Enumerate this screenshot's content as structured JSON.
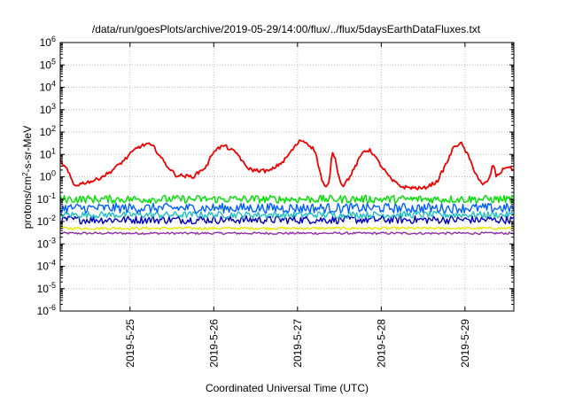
{
  "chart_data": {
    "type": "line",
    "title": "/data/run/goesPlots/archive/2019-05-29/14:00/flux/../flux/5daysEarthDataFluxes.txt",
    "xlabel": "Coordinated Universal Time (UTC)",
    "ylabel_parts": [
      "protons/cm",
      "2",
      "-s-sr-MeV"
    ],
    "y_scale": "log",
    "ylim": [
      1e-06,
      1000000.0
    ],
    "y_ticks": [
      {
        "base": "10",
        "exp": "6",
        "value": 1000000.0
      },
      {
        "base": "10",
        "exp": "5",
        "value": 100000.0
      },
      {
        "base": "10",
        "exp": "4",
        "value": 10000.0
      },
      {
        "base": "10",
        "exp": "3",
        "value": 1000.0
      },
      {
        "base": "10",
        "exp": "2",
        "value": 100.0
      },
      {
        "base": "10",
        "exp": "1",
        "value": 10.0
      },
      {
        "base": "10",
        "exp": "0",
        "value": 1.0
      },
      {
        "base": "10",
        "exp": "-1",
        "value": 0.1
      },
      {
        "base": "10",
        "exp": "-2",
        "value": 0.01
      },
      {
        "base": "10",
        "exp": "-3",
        "value": 0.001
      },
      {
        "base": "10",
        "exp": "-4",
        "value": 0.0001
      },
      {
        "base": "10",
        "exp": "-5",
        "value": 1e-05
      },
      {
        "base": "10",
        "exp": "-6",
        "value": 1e-06
      }
    ],
    "xlim": [
      "2019-05-24T04:00",
      "2019-05-29T14:00"
    ],
    "x_ticks": [
      {
        "label": "2019-5-25",
        "value": "2019-05-25T00:00"
      },
      {
        "label": "2019-5-26",
        "value": "2019-05-26T00:00"
      },
      {
        "label": "2019-5-27",
        "value": "2019-05-27T00:00"
      },
      {
        "label": "2019-5-28",
        "value": "2019-05-28T00:00"
      },
      {
        "label": "2019-5-29",
        "value": "2019-05-29T00:00"
      }
    ],
    "grid": true,
    "series": [
      {
        "color": "#f00000",
        "noise": 0.08,
        "points": [
          [
            "2019-05-24T04:00",
            5
          ],
          [
            "2019-05-24T06:00",
            2
          ],
          [
            "2019-05-24T08:00",
            0.4
          ],
          [
            "2019-05-24T10:00",
            0.5
          ],
          [
            "2019-05-24T14:00",
            0.7
          ],
          [
            "2019-05-24T18:00",
            1.5
          ],
          [
            "2019-05-24T22:00",
            5
          ],
          [
            "2019-05-25T02:00",
            20
          ],
          [
            "2019-05-25T05:00",
            30
          ],
          [
            "2019-05-25T07:00",
            20
          ],
          [
            "2019-05-25T10:00",
            4
          ],
          [
            "2019-05-25T13:00",
            1.2
          ],
          [
            "2019-05-25T18:00",
            1
          ],
          [
            "2019-05-25T22:00",
            3
          ],
          [
            "2019-05-26T00:00",
            15
          ],
          [
            "2019-05-26T03:00",
            25
          ],
          [
            "2019-05-26T07:00",
            10
          ],
          [
            "2019-05-26T09:00",
            3
          ],
          [
            "2019-05-26T11:00",
            2
          ],
          [
            "2019-05-26T16:00",
            1.8
          ],
          [
            "2019-05-26T20:00",
            5
          ],
          [
            "2019-05-26T23:00",
            20
          ],
          [
            "2019-05-27T01:00",
            45
          ],
          [
            "2019-05-27T03:00",
            30
          ],
          [
            "2019-05-27T05:00",
            15
          ],
          [
            "2019-05-27T07:00",
            0.7
          ],
          [
            "2019-05-27T08:00",
            0.3
          ],
          [
            "2019-05-27T09:00",
            0.5
          ],
          [
            "2019-05-27T10:00",
            15
          ],
          [
            "2019-05-27T11:00",
            5
          ],
          [
            "2019-05-27T12:00",
            0.8
          ],
          [
            "2019-05-27T13:00",
            0.4
          ],
          [
            "2019-05-27T15:00",
            1
          ],
          [
            "2019-05-27T19:00",
            15
          ],
          [
            "2019-05-27T21:00",
            15
          ],
          [
            "2019-05-28T00:00",
            3
          ],
          [
            "2019-05-28T03:00",
            0.7
          ],
          [
            "2019-05-28T06:00",
            0.35
          ],
          [
            "2019-05-28T12:00",
            0.3
          ],
          [
            "2019-05-28T16:00",
            0.6
          ],
          [
            "2019-05-28T19:00",
            5
          ],
          [
            "2019-05-28T21:00",
            25
          ],
          [
            "2019-05-28T23:00",
            30
          ],
          [
            "2019-05-29T01:00",
            8
          ],
          [
            "2019-05-29T03:00",
            1.5
          ],
          [
            "2019-05-29T05:00",
            0.4
          ],
          [
            "2019-05-29T07:00",
            0.8
          ],
          [
            "2019-05-29T08:00",
            4
          ],
          [
            "2019-05-29T09:00",
            1
          ],
          [
            "2019-05-29T10:00",
            1.5
          ],
          [
            "2019-05-29T12:00",
            3
          ],
          [
            "2019-05-29T14:00",
            2
          ]
        ]
      },
      {
        "color": "#00e000",
        "noise": 0.18,
        "points": [
          [
            "2019-05-24T04:00",
            0.1
          ],
          [
            "2019-05-29T14:00",
            0.1
          ]
        ]
      },
      {
        "color": "#20c0c0",
        "noise": 0.15,
        "points": [
          [
            "2019-05-24T04:00",
            0.02
          ],
          [
            "2019-05-29T14:00",
            0.02
          ]
        ]
      },
      {
        "color": "#0060ff",
        "noise": 0.22,
        "points": [
          [
            "2019-05-24T04:00",
            0.04
          ],
          [
            "2019-05-29T14:00",
            0.04
          ]
        ]
      },
      {
        "color": "#0000c0",
        "noise": 0.18,
        "points": [
          [
            "2019-05-24T04:00",
            0.012
          ],
          [
            "2019-05-29T14:00",
            0.012
          ]
        ]
      },
      {
        "color": "#e8e800",
        "noise": 0.06,
        "points": [
          [
            "2019-05-24T04:00",
            0.005
          ],
          [
            "2019-05-29T14:00",
            0.005
          ]
        ]
      },
      {
        "color": "#9030a0",
        "noise": 0.05,
        "points": [
          [
            "2019-05-24T04:00",
            0.003
          ],
          [
            "2019-05-29T14:00",
            0.003
          ]
        ]
      }
    ]
  }
}
